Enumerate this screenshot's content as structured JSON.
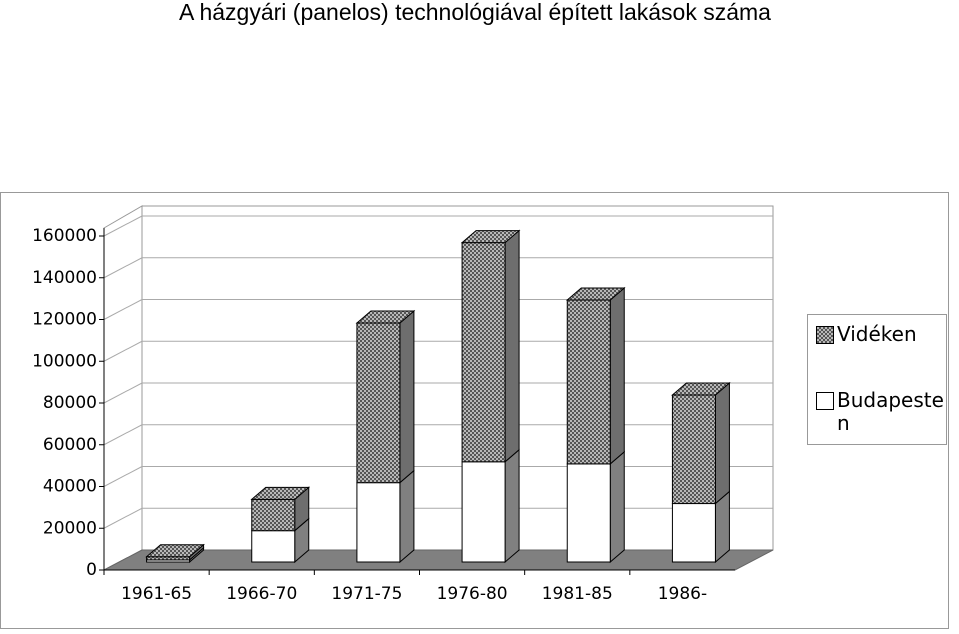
{
  "chart_data": {
    "type": "bar3d_stacked",
    "title": "A házgyári (panelos) technológiával épített lakások száma",
    "categories": [
      "1961-65",
      "1966-70",
      "1971-75",
      "1976-80",
      "1981-85",
      "1986-"
    ],
    "series": [
      {
        "name": "Vidéken",
        "color": "#8c8c8c",
        "values": [
          1500,
          15000,
          76500,
          105000,
          78500,
          52000
        ]
      },
      {
        "name": "Budapesten",
        "color": "#ffffff",
        "values": [
          1000,
          15000,
          38000,
          48000,
          47000,
          28000
        ]
      }
    ],
    "ylim": [
      0,
      160000
    ],
    "yticks": [
      0,
      20000,
      40000,
      60000,
      80000,
      100000,
      120000,
      140000,
      160000
    ],
    "grid": true,
    "legend": "right"
  }
}
